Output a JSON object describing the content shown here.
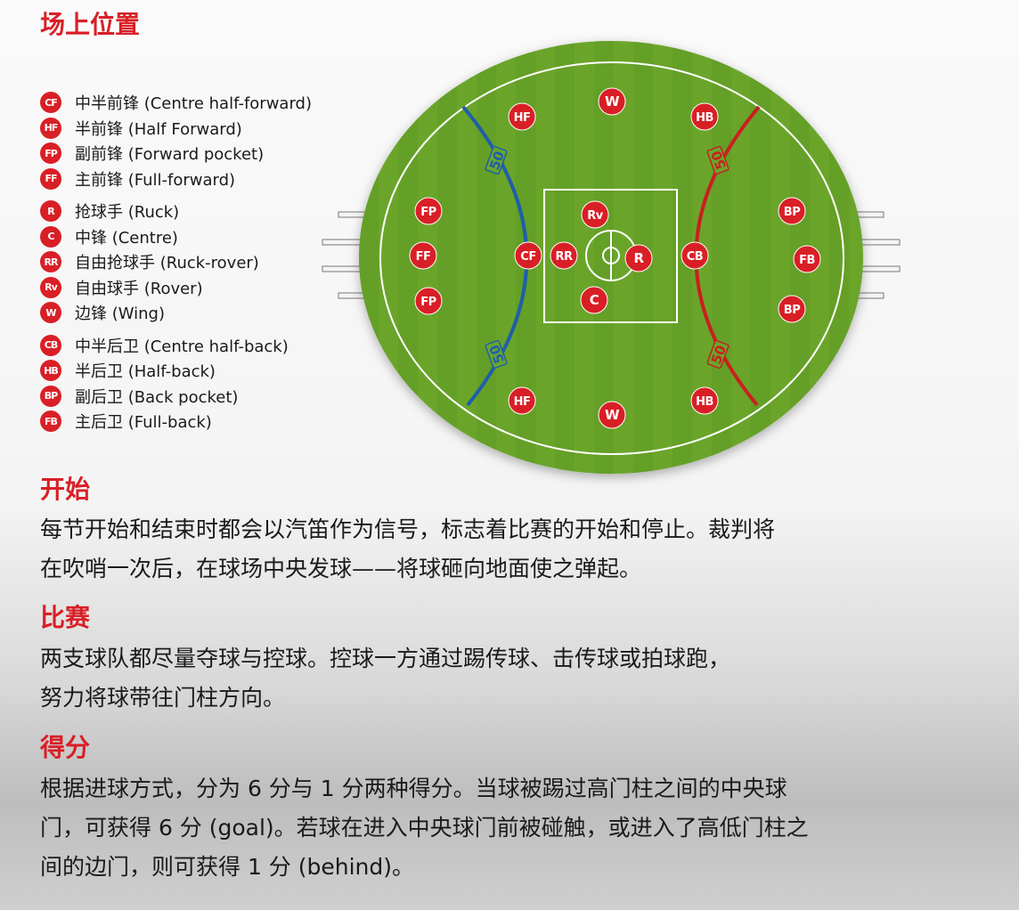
{
  "headings": {
    "positions": "场上位置",
    "start": "开始",
    "play": "比赛",
    "scoring": "得分"
  },
  "legend": [
    {
      "code": "CF",
      "label": "中半前锋 (Centre half-forward)"
    },
    {
      "code": "HF",
      "label": "半前锋 (Half Forward)"
    },
    {
      "code": "FP",
      "label": "副前锋 (Forward pocket)"
    },
    {
      "code": "FF",
      "label": "主前锋 (Full-forward)"
    },
    {
      "code": "R",
      "label": "抢球手 (Ruck)"
    },
    {
      "code": "C",
      "label": "中锋 (Centre)"
    },
    {
      "code": "RR",
      "label": "自由抢球手 (Ruck-rover)"
    },
    {
      "code": "Rv",
      "label": "自由球手 (Rover)"
    },
    {
      "code": "W",
      "label": "边锋 (Wing)"
    },
    {
      "code": "CB",
      "label": "中半后卫 (Centre half-back)"
    },
    {
      "code": "HB",
      "label": "半后卫 (Half-back)"
    },
    {
      "code": "BP",
      "label": "副后卫 (Back pocket)"
    },
    {
      "code": "FB",
      "label": "主后卫 (Full-back)"
    }
  ],
  "field": {
    "arc_label": "50",
    "colors": {
      "grass": "#6aa52c",
      "stripe": "#5e9a24",
      "left_arc": "#1f5fa8",
      "right_arc": "#c8201f",
      "badge": "#d91f26"
    },
    "players": [
      "W",
      "HF",
      "HB",
      "FP",
      "FF",
      "FP",
      "CF",
      "RR",
      "Rv",
      "R",
      "C",
      "CB",
      "BP",
      "FB",
      "BP",
      "HF",
      "W",
      "HB"
    ]
  },
  "paragraphs": {
    "start": [
      "每节开始和结束时都会以汽笛作为信号，标志着比赛的开始和停止。裁判将",
      "在吹哨一次后，在球场中央发球——将球砸向地面使之弹起。"
    ],
    "play": [
      "两支球队都尽量夺球与控球。控球一方通过踢传球、击传球或拍球跑，",
      "努力将球带往门柱方向。"
    ],
    "scoring": [
      "根据进球方式，分为 6 分与 1 分两种得分。当球被踢过高门柱之间的中央球",
      "门，可获得 6 分 (goal)。若球在进入中央球门前被碰触，或进入了高低门柱之",
      "间的边门，则可获得 1 分 (behind)。"
    ]
  }
}
